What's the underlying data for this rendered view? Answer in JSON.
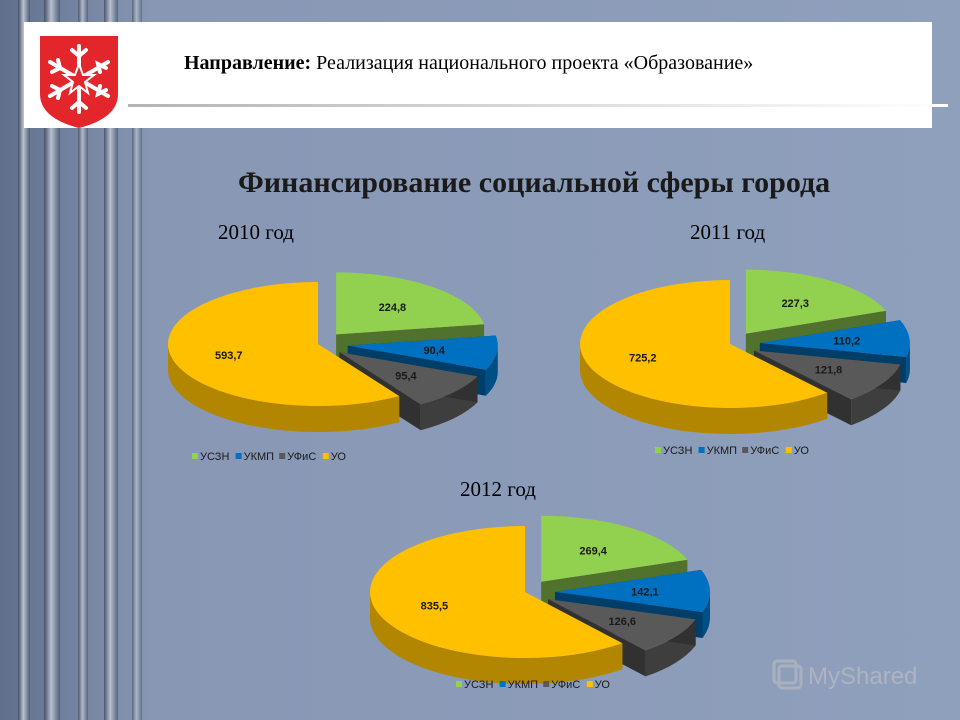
{
  "header": {
    "label": "Направление:",
    "text": " Реализация национального проекта «Образование»"
  },
  "title": "Финансирование социальной сферы города",
  "watermark": {
    "text": "MyShared"
  },
  "colors": {
    "УСЗН": "#92d050",
    "УКМП": "#0070c0",
    "УФиС": "#595959",
    "УО": "#ffc000",
    "background": "#8a9ab8"
  },
  "icons": {
    "emblem": "snowflake-star-shield-icon"
  },
  "chart_data": [
    {
      "type": "pie",
      "title": "2010 год",
      "categories": [
        "УСЗН",
        "УКМП",
        "УФиС",
        "УО"
      ],
      "values": [
        224.8,
        90.4,
        95.4,
        593.7
      ],
      "value_labels": [
        "224,8",
        "90,4",
        "95,4",
        "593,7"
      ],
      "legend": [
        "УСЗН",
        "УКМП",
        "УФиС",
        "УО"
      ],
      "legend_placement": "bottom"
    },
    {
      "type": "pie",
      "title": "2011 год",
      "categories": [
        "УСЗН",
        "УКМП",
        "УФиС",
        "УО"
      ],
      "values": [
        227.3,
        110.2,
        121.8,
        725.2
      ],
      "value_labels": [
        "227,3",
        "110,2",
        "121,8",
        "725,2"
      ],
      "legend": [
        "УСЗН",
        "УКМП",
        "УФиС",
        "УО"
      ],
      "legend_placement": "bottom"
    },
    {
      "type": "pie",
      "title": "2012 год",
      "categories": [
        "УСЗН",
        "УКМП",
        "УФиС",
        "УО"
      ],
      "values": [
        269.4,
        142.1,
        126.6,
        835.5
      ],
      "value_labels": [
        "269,4",
        "142,1",
        "126,6",
        "835,5"
      ],
      "legend": [
        "УСЗН",
        "УКМП",
        "УФиС",
        "УО"
      ],
      "legend_placement": "bottom"
    }
  ]
}
